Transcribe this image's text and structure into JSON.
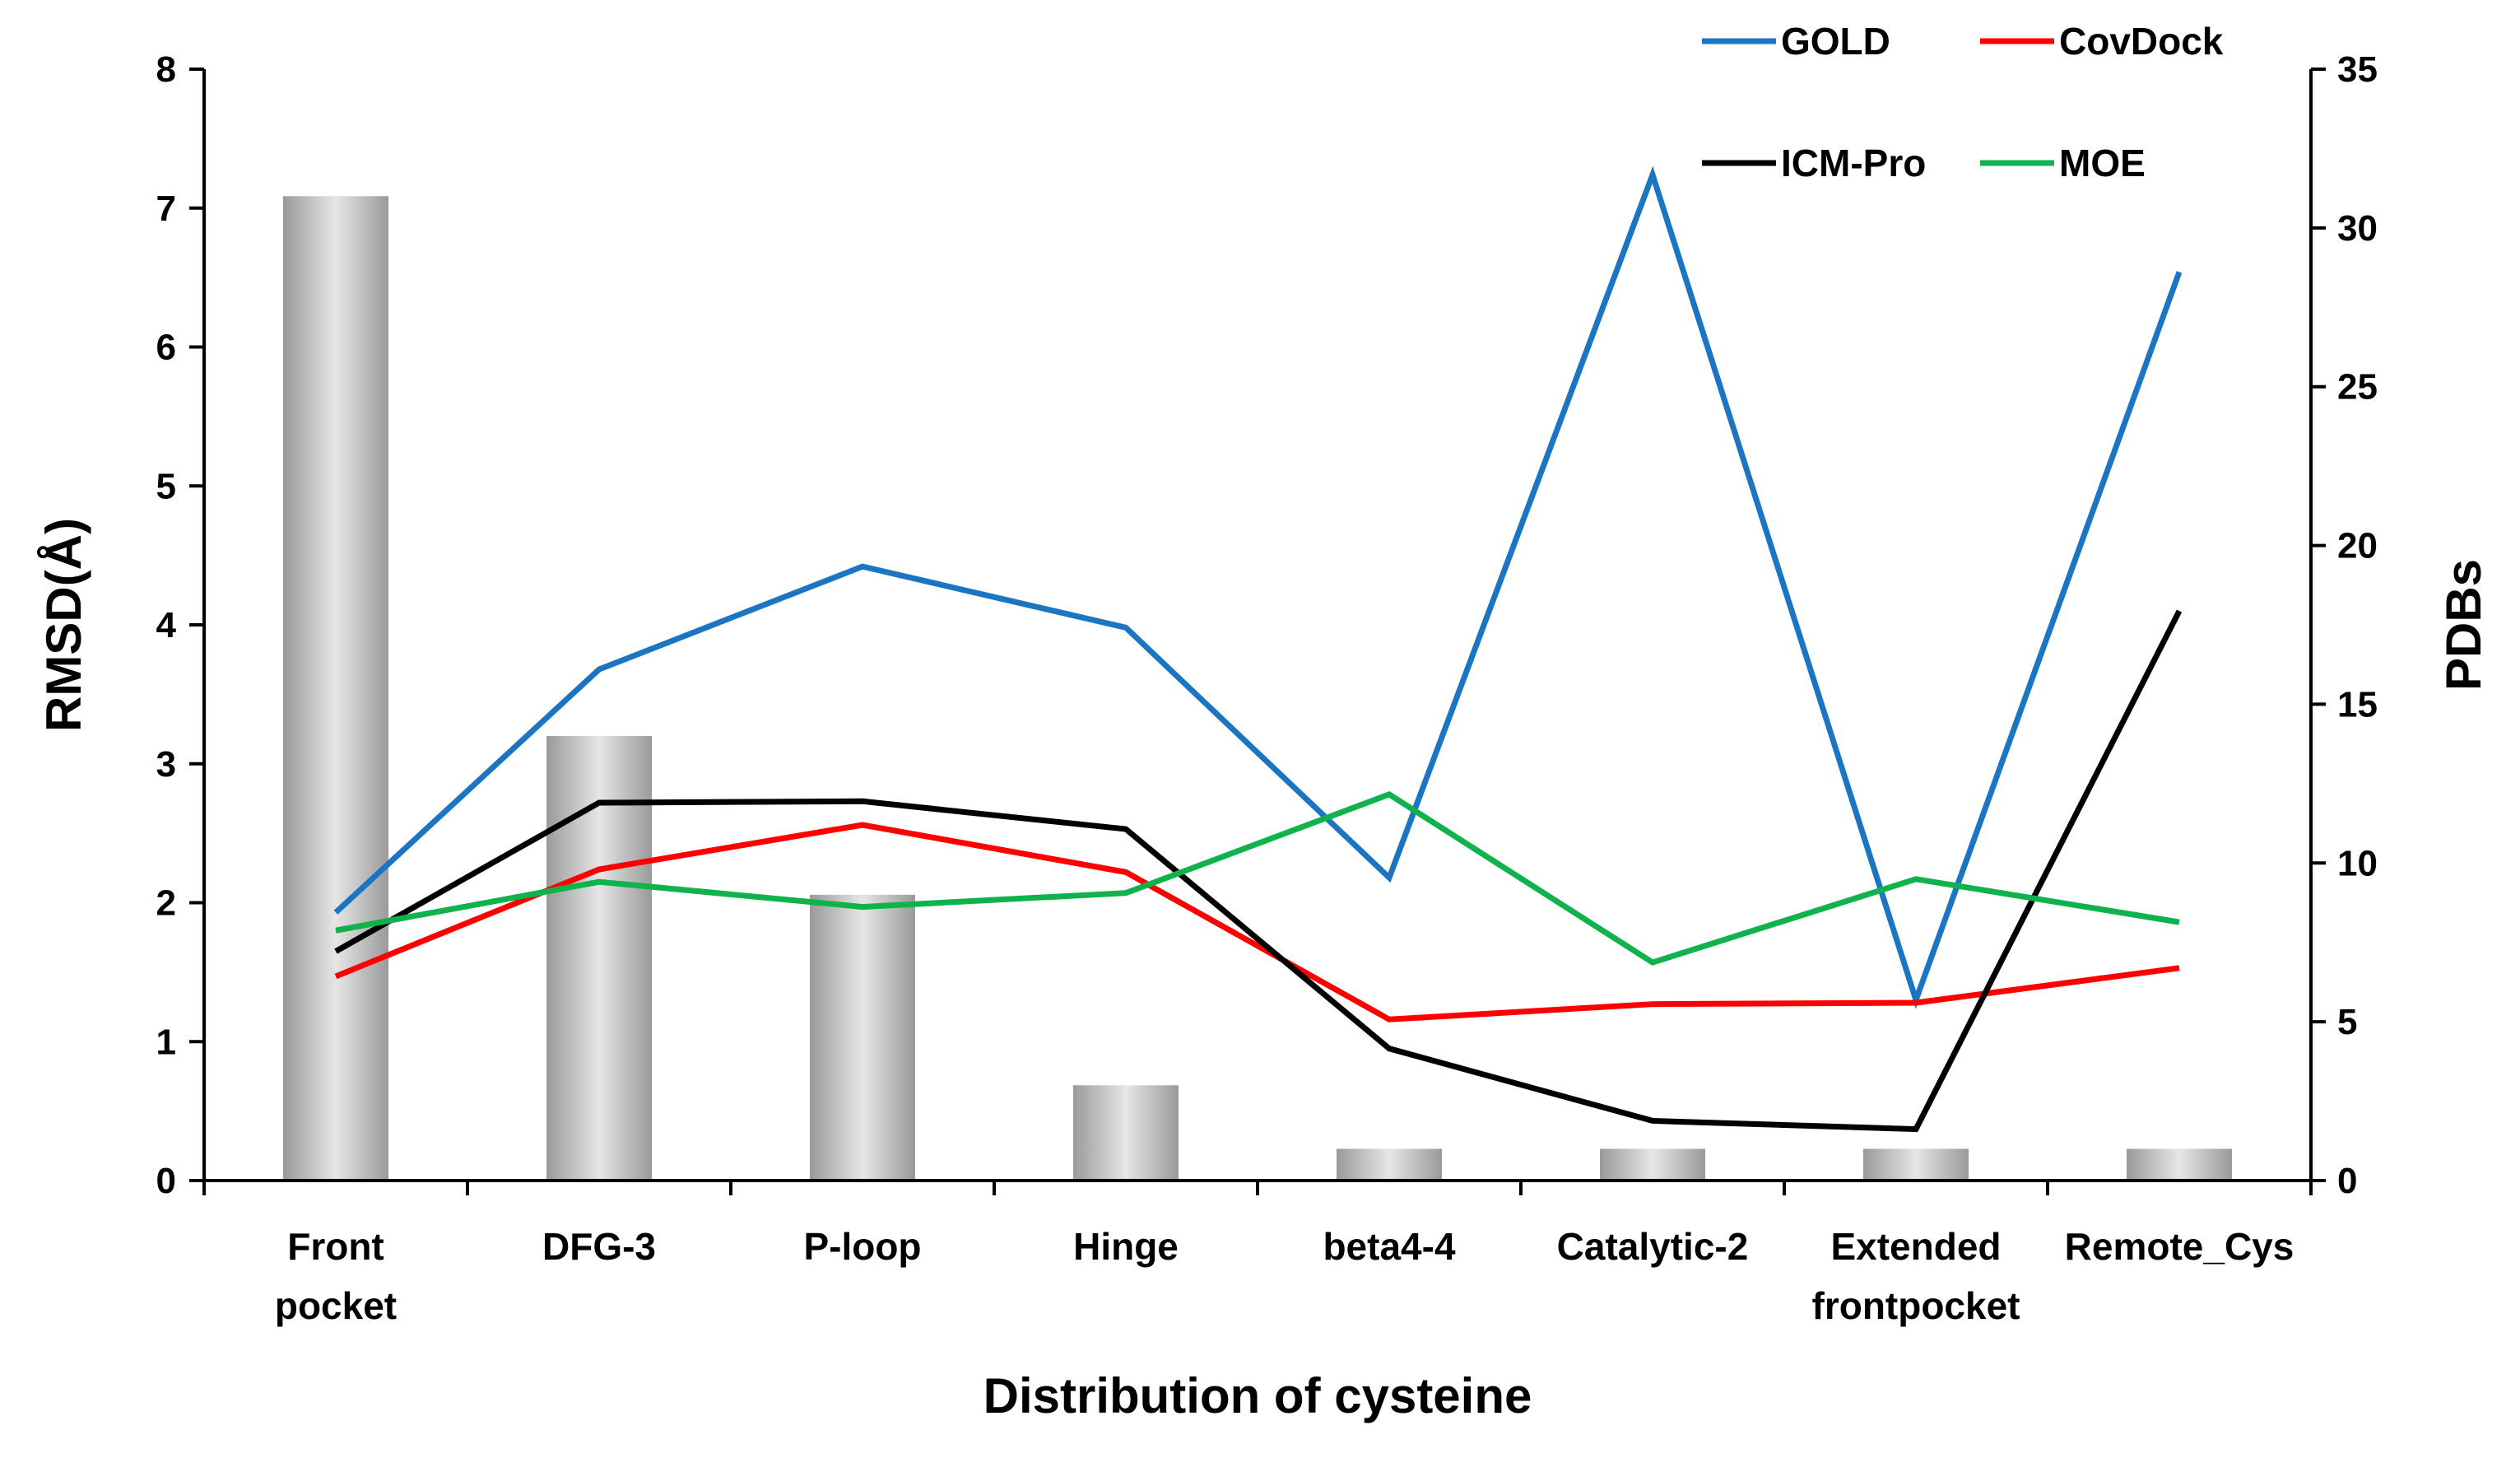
{
  "chart_data": {
    "type": "bar+line",
    "categories": [
      [
        "Front",
        "pocket"
      ],
      [
        "DFG-3"
      ],
      [
        "P-loop"
      ],
      [
        "Hinge"
      ],
      [
        "beta4-4"
      ],
      [
        "Catalytic-2"
      ],
      [
        "Extended",
        "frontpocket"
      ],
      [
        "Remote_Cys"
      ]
    ],
    "xlabel": "Distribution of cysteine",
    "ylabel_left": "RMSD(Å)",
    "ylabel_right": "PDBs",
    "ylim_left": [
      0,
      8
    ],
    "yticks_left": [
      "0",
      "1",
      "2",
      "3",
      "4",
      "5",
      "6",
      "7",
      "8"
    ],
    "ylim_right": [
      0,
      35
    ],
    "yticks_right": [
      "0",
      "5",
      "10",
      "15",
      "20",
      "25",
      "30",
      "35"
    ],
    "bars": {
      "name": "PDBs",
      "axis": "right",
      "color": "#bdbdbd",
      "values": [
        31,
        14,
        9,
        3,
        1,
        1,
        1,
        1
      ]
    },
    "series": [
      {
        "name": "GOLD",
        "color": "#1b75c2",
        "values": [
          1.93,
          3.68,
          4.42,
          3.98,
          2.18,
          7.24,
          1.3,
          6.54
        ]
      },
      {
        "name": "CovDock",
        "color": "#ff0000",
        "values": [
          1.47,
          2.24,
          2.56,
          2.22,
          1.16,
          1.27,
          1.28,
          1.53
        ]
      },
      {
        "name": "ICM-Pro",
        "color": "#000000",
        "values": [
          1.65,
          2.72,
          2.73,
          2.53,
          0.95,
          0.43,
          0.37,
          4.1
        ]
      },
      {
        "name": "MOE",
        "color": "#10b24c",
        "values": [
          1.8,
          2.15,
          1.97,
          2.07,
          2.78,
          1.57,
          2.17,
          1.86
        ]
      }
    ],
    "legend_position": "top-right"
  }
}
